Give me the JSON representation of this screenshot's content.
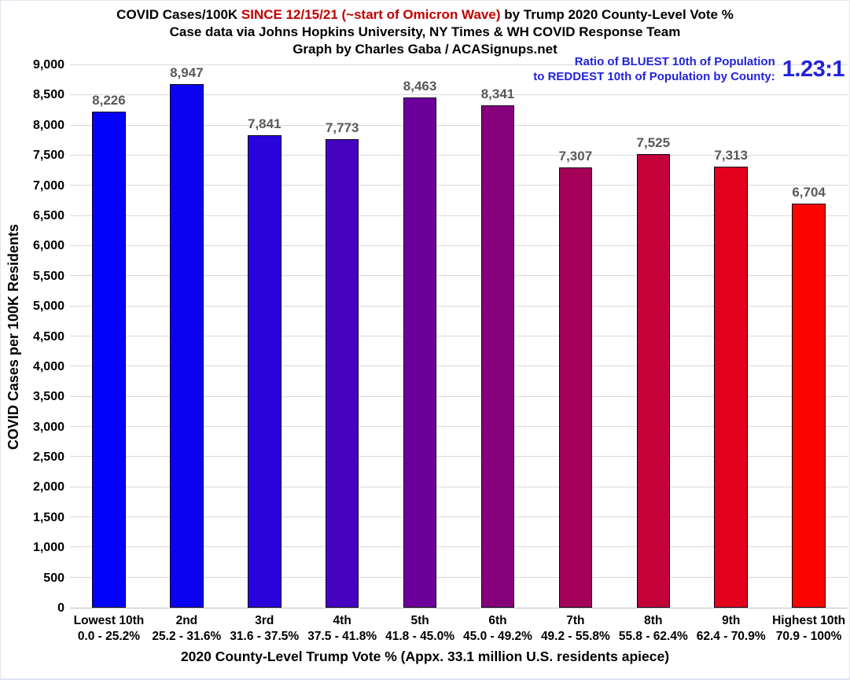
{
  "title": {
    "part1": "COVID Cases/100K ",
    "part2_highlight": "SINCE 12/15/21 (~start of Omicron Wave)",
    "part3": " by Trump 2020 County-Level Vote %",
    "subtitle": "Case data via Johns Hopkins University, NY Times & WH COVID Response Team",
    "credit": "Graph by Charles Gaba / ACASignups.net"
  },
  "ratio_annotation": {
    "line1": "Ratio of BLUEST 10th of Population",
    "line2": "to REDDEST 10th of Population by County:",
    "value": "1.23:1"
  },
  "colors": {
    "title_highlight_red": "#c00000",
    "annotation_blue": "#2222dd",
    "value_label_gray": "#595959",
    "gridline": "#d9d9d9"
  },
  "chart_data": {
    "type": "bar",
    "title": "COVID Cases/100K SINCE 12/15/21 (~start of Omicron Wave) by Trump 2020 County-Level Vote %",
    "subtitle": "Case data via Johns Hopkins University, NY Times & WH COVID Response Team",
    "credit": "Graph by Charles Gaba / ACASignups.net",
    "categories": [
      "Lowest 10th",
      "2nd",
      "3rd",
      "4th",
      "5th",
      "6th",
      "7th",
      "8th",
      "9th",
      "Highest 10th"
    ],
    "category_ranges": [
      "0.0 - 25.2%",
      "25.2 - 31.6%",
      "31.6 - 37.5%",
      "37.5 - 41.8%",
      "41.8 - 45.0%",
      "45.0 - 49.2%",
      "49.2 - 55.8%",
      "55.8 - 62.4%",
      "62.4 - 70.9%",
      "70.9 - 100%"
    ],
    "values": [
      8226,
      8947,
      7841,
      7773,
      8463,
      8341,
      7307,
      7525,
      7313,
      6704
    ],
    "value_labels": [
      "8,226",
      "8,947",
      "7,841",
      "7,773",
      "8,463",
      "8,341",
      "7,307",
      "7,525",
      "7,313",
      "6,704"
    ],
    "bar_colors": [
      "#0202fa",
      "#0b02f2",
      "#2a02dc",
      "#4503bf",
      "#6b019a",
      "#84017b",
      "#a40159",
      "#c40139",
      "#e3011e",
      "#fb0500"
    ],
    "xlabel": "2020 County-Level Trump Vote % (Appx. 33.1 million U.S. residents apiece)",
    "ylabel": "COVID Cases per 100K Residents",
    "ylim": [
      0,
      9000
    ],
    "ytick_step": 500,
    "grid": true,
    "legend": false,
    "annotation": "Ratio of BLUEST 10th of Population to REDDEST 10th of Population by County: 1.23:1"
  }
}
